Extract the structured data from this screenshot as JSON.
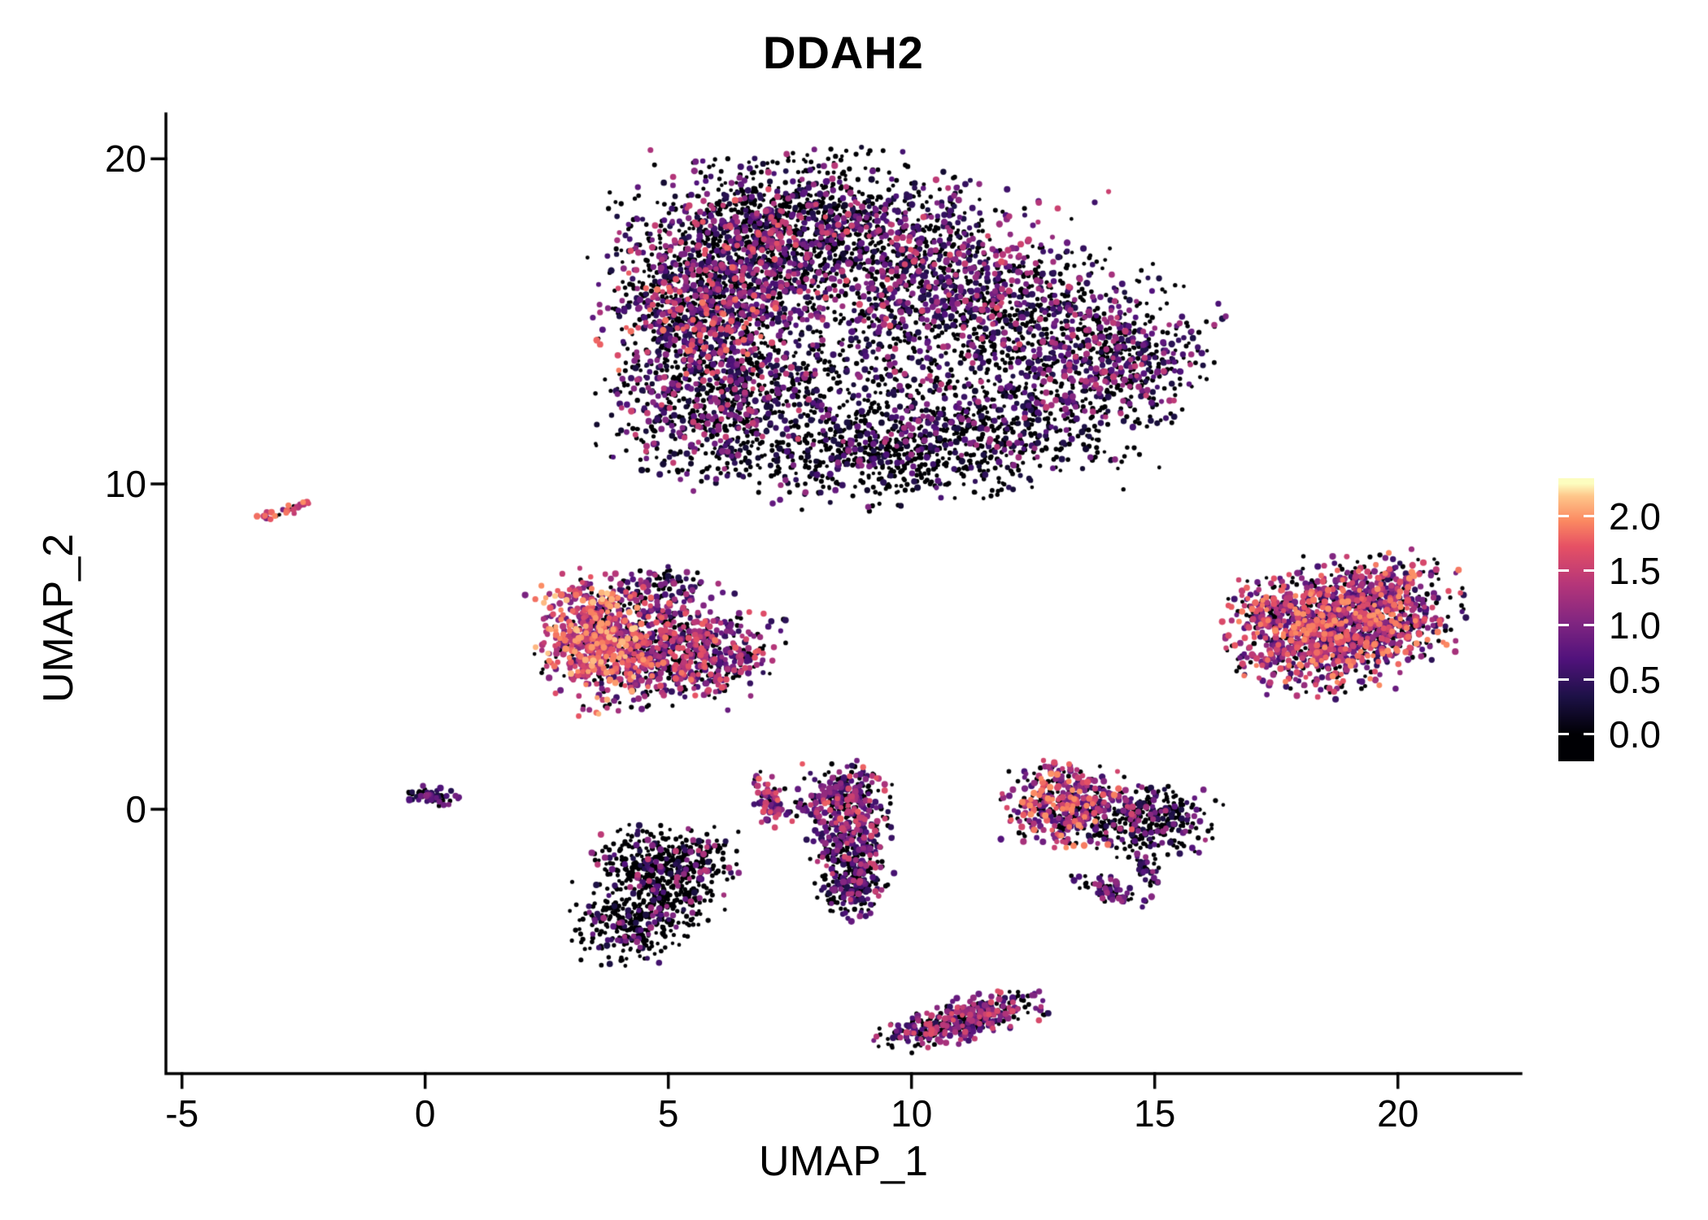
{
  "chart_data": {
    "type": "scatter",
    "title": "DDAH2",
    "xlabel": "UMAP_1",
    "ylabel": "UMAP_2",
    "x_ticks": [
      -5,
      0,
      5,
      10,
      15,
      20
    ],
    "y_ticks": [
      0,
      10,
      20
    ],
    "xlim": [
      -5.33,
      22.53
    ],
    "ylim": [
      -8.13,
      21.38
    ],
    "grid": "off",
    "background_color": "#ffffff",
    "axis_color": "#000000",
    "colorbar": {
      "position": "right",
      "tick_labels": [
        "2.0",
        "1.5",
        "1.0",
        "0.5",
        "0.0"
      ],
      "tick_values": [
        2.0,
        1.5,
        1.0,
        0.5,
        0.0
      ],
      "value_range": [
        -0.25,
        2.35
      ],
      "color_max": 2.3
    },
    "colormap": {
      "name": "magma",
      "stops": [
        [
          0.0,
          "#000004"
        ],
        [
          0.15,
          "#1d1147"
        ],
        [
          0.3,
          "#51127c"
        ],
        [
          0.45,
          "#822681"
        ],
        [
          0.6,
          "#b63679"
        ],
        [
          0.75,
          "#e65164"
        ],
        [
          0.85,
          "#fb8861"
        ],
        [
          0.95,
          "#fec68a"
        ],
        [
          1.0,
          "#fcfdbf"
        ]
      ]
    },
    "seed": 42,
    "blobs": [
      {
        "cluster": "main-upper",
        "n": 900,
        "cx": 7.6,
        "cy": 18.2,
        "sx": 1.6,
        "sy": 0.9,
        "rot": 0,
        "p0": 0.62,
        "lo": 0.2,
        "hi": 1.6,
        "bias": 1.6
      },
      {
        "cluster": "main-upper",
        "n": 750,
        "cx": 6.2,
        "cy": 16.6,
        "sx": 1.1,
        "sy": 0.9,
        "rot": 20,
        "p0": 0.5,
        "lo": 0.3,
        "hi": 1.8,
        "bias": 1.5
      },
      {
        "cluster": "main-upper",
        "n": 900,
        "cx": 9.8,
        "cy": 16.6,
        "sx": 1.8,
        "sy": 1.1,
        "rot": 0,
        "p0": 0.5,
        "lo": 0.3,
        "hi": 1.7,
        "bias": 1.4
      },
      {
        "cluster": "main-upper",
        "n": 800,
        "cx": 12.6,
        "cy": 14.8,
        "sx": 1.5,
        "sy": 1.2,
        "rot": -20,
        "p0": 0.55,
        "lo": 0.3,
        "hi": 1.5,
        "bias": 1.5
      },
      {
        "cluster": "main-upper",
        "n": 550,
        "cx": 5.6,
        "cy": 14.8,
        "sx": 0.9,
        "sy": 0.8,
        "rot": 0,
        "p0": 0.45,
        "lo": 0.3,
        "hi": 1.9,
        "bias": 1.3
      },
      {
        "cluster": "main-upper",
        "n": 650,
        "cx": 5.9,
        "cy": 12.3,
        "sx": 1.0,
        "sy": 1.1,
        "rot": 0,
        "p0": 0.6,
        "lo": 0.2,
        "hi": 1.6,
        "bias": 1.6
      },
      {
        "cluster": "main-upper",
        "n": 500,
        "cx": 8.3,
        "cy": 13.4,
        "sx": 1.7,
        "sy": 1.1,
        "rot": 0,
        "p0": 0.68,
        "lo": 0.2,
        "hi": 1.5,
        "bias": 1.6
      },
      {
        "cluster": "main-upper",
        "n": 700,
        "cx": 11.4,
        "cy": 11.5,
        "sx": 1.7,
        "sy": 0.9,
        "rot": 10,
        "p0": 0.66,
        "lo": 0.2,
        "hi": 1.4,
        "bias": 1.6
      },
      {
        "cluster": "main-upper",
        "n": 350,
        "cx": 9.0,
        "cy": 10.9,
        "sx": 1.3,
        "sy": 0.7,
        "rot": 0,
        "p0": 0.75,
        "lo": 0.2,
        "hi": 1.2,
        "bias": 1.6
      },
      {
        "cluster": "main-upper",
        "n": 300,
        "cx": 14.4,
        "cy": 13.8,
        "sx": 0.8,
        "sy": 0.8,
        "rot": 0,
        "p0": 0.55,
        "lo": 0.3,
        "hi": 1.5,
        "bias": 1.5
      },
      {
        "cluster": "streak-left",
        "n": 28,
        "cx": -2.85,
        "cy": 9.2,
        "sx": 0.3,
        "sy": 0.07,
        "rot": 25,
        "p0": 0.15,
        "lo": 0.8,
        "hi": 2.0,
        "bias": 0.8
      },
      {
        "cluster": "mid-left",
        "n": 500,
        "cx": 3.5,
        "cy": 5.2,
        "sx": 0.55,
        "sy": 0.95,
        "rot": 10,
        "p0": 0.15,
        "lo": 0.8,
        "hi": 2.2,
        "bias": 0.9
      },
      {
        "cluster": "mid-left",
        "n": 550,
        "cx": 4.6,
        "cy": 5.2,
        "sx": 0.8,
        "sy": 0.95,
        "rot": 0,
        "p0": 0.38,
        "lo": 0.4,
        "hi": 1.9,
        "bias": 1.2
      },
      {
        "cluster": "mid-left",
        "n": 350,
        "cx": 5.8,
        "cy": 4.8,
        "sx": 0.7,
        "sy": 0.6,
        "rot": 0,
        "p0": 0.38,
        "lo": 0.4,
        "hi": 1.8,
        "bias": 1.2
      },
      {
        "cluster": "mid-left",
        "n": 60,
        "cx": 4.9,
        "cy": 6.9,
        "sx": 0.5,
        "sy": 0.28,
        "rot": 0,
        "p0": 0.5,
        "lo": 0.3,
        "hi": 1.4,
        "bias": 1.3
      },
      {
        "cluster": "tiny-left",
        "n": 70,
        "cx": 0.15,
        "cy": 0.4,
        "sx": 0.25,
        "sy": 0.13,
        "rot": -10,
        "p0": 0.45,
        "lo": 0.3,
        "hi": 1.2,
        "bias": 1.3
      },
      {
        "cluster": "lower-left",
        "n": 380,
        "cx": 4.9,
        "cy": -1.6,
        "sx": 0.7,
        "sy": 0.5,
        "rot": 0,
        "p0": 0.78,
        "lo": 0.3,
        "hi": 1.5,
        "bias": 1.4
      },
      {
        "cluster": "lower-left",
        "n": 300,
        "cx": 4.2,
        "cy": -3.5,
        "sx": 0.55,
        "sy": 0.55,
        "rot": 0,
        "p0": 0.82,
        "lo": 0.3,
        "hi": 1.4,
        "bias": 1.5
      },
      {
        "cluster": "lower-left",
        "n": 150,
        "cx": 5.1,
        "cy": -2.5,
        "sx": 0.45,
        "sy": 0.6,
        "rot": 0,
        "p0": 0.8,
        "lo": 0.3,
        "hi": 1.3,
        "bias": 1.5
      },
      {
        "cluster": "crescent",
        "n": 80,
        "cx": 7.1,
        "cy": 0.25,
        "sx": 0.16,
        "sy": 0.4,
        "rot": 15,
        "p0": 0.3,
        "lo": 0.5,
        "hi": 1.8,
        "bias": 1.0
      },
      {
        "cluster": "crescent",
        "n": 12,
        "cx": 7.7,
        "cy": 0.1,
        "sx": 0.15,
        "sy": 0.12,
        "rot": 0,
        "p0": 0.5,
        "lo": 0.4,
        "hi": 1.2,
        "bias": 1.2
      },
      {
        "cluster": "mid-column",
        "n": 240,
        "cx": 8.6,
        "cy": 0.3,
        "sx": 0.42,
        "sy": 0.5,
        "rot": 0,
        "p0": 0.4,
        "lo": 0.4,
        "hi": 1.8,
        "bias": 1.2
      },
      {
        "cluster": "mid-column",
        "n": 260,
        "cx": 8.75,
        "cy": -1.1,
        "sx": 0.38,
        "sy": 0.65,
        "rot": 0,
        "p0": 0.45,
        "lo": 0.4,
        "hi": 1.6,
        "bias": 1.3
      },
      {
        "cluster": "mid-column",
        "n": 170,
        "cx": 8.8,
        "cy": -2.4,
        "sx": 0.33,
        "sy": 0.45,
        "rot": 0,
        "p0": 0.5,
        "lo": 0.3,
        "hi": 1.5,
        "bias": 1.3
      },
      {
        "cluster": "mid-right",
        "n": 380,
        "cx": 13.2,
        "cy": 0.1,
        "sx": 0.62,
        "sy": 0.62,
        "rot": 0,
        "p0": 0.3,
        "lo": 0.5,
        "hi": 2.0,
        "bias": 1.0
      },
      {
        "cluster": "mid-right",
        "n": 420,
        "cx": 14.7,
        "cy": -0.3,
        "sx": 0.75,
        "sy": 0.55,
        "rot": 0,
        "p0": 0.75,
        "lo": 0.3,
        "hi": 1.4,
        "bias": 1.5
      },
      {
        "cluster": "mid-right",
        "n": 70,
        "cx": 14.1,
        "cy": -2.5,
        "sx": 0.4,
        "sy": 0.18,
        "rot": -30,
        "p0": 0.4,
        "lo": 0.4,
        "hi": 1.3,
        "bias": 1.2
      },
      {
        "cluster": "mid-right",
        "n": 40,
        "cx": 14.8,
        "cy": -1.8,
        "sx": 0.15,
        "sy": 0.3,
        "rot": 20,
        "p0": 0.5,
        "lo": 0.3,
        "hi": 1.2,
        "bias": 1.3
      },
      {
        "cluster": "bottom",
        "n": 420,
        "cx": 11.0,
        "cy": -6.5,
        "sx": 0.8,
        "sy": 0.28,
        "rot": 20,
        "p0": 0.45,
        "lo": 0.4,
        "hi": 1.7,
        "bias": 1.2
      },
      {
        "cluster": "right",
        "n": 750,
        "cx": 18.3,
        "cy": 5.3,
        "sx": 0.8,
        "sy": 0.85,
        "rot": 0,
        "p0": 0.3,
        "lo": 0.4,
        "hi": 2.0,
        "bias": 1.0
      },
      {
        "cluster": "right",
        "n": 750,
        "cx": 19.6,
        "cy": 6.1,
        "sx": 0.75,
        "sy": 0.8,
        "rot": 0,
        "p0": 0.35,
        "lo": 0.4,
        "hi": 2.0,
        "bias": 1.1
      },
      {
        "cluster": "right",
        "n": 120,
        "cx": 17.3,
        "cy": 6.0,
        "sx": 0.35,
        "sy": 0.5,
        "rot": 0,
        "p0": 0.35,
        "lo": 0.6,
        "hi": 2.0,
        "bias": 0.9
      }
    ]
  }
}
